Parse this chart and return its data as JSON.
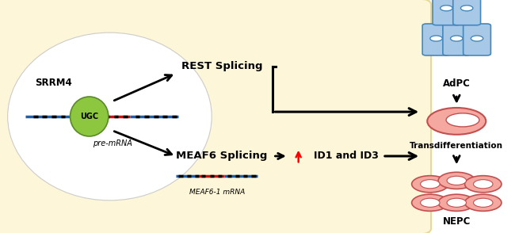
{
  "bg_color": "#fdf6d8",
  "bg_edge_color": "#e8d898",
  "srrm4_label": "SRRM4",
  "ugc_label": "UGC",
  "premrna_label": "pre-mRNA",
  "rest_label": "REST Splicing",
  "meaf6_label": "MEAF6 Splicing",
  "meaf6_mrna_label": "MEAF6-1 mRNA",
  "id_label": "ID1 and ID3",
  "adpc_label": "AdPC",
  "transdiff_label": "Transdifferentiation",
  "nepc_label": "NEPC",
  "line_blue": "#1e5fa8",
  "line_red": "#cc1111",
  "ugc_green": "#8dc63f",
  "ugc_green_edge": "#5a8a28",
  "arrow_color": "#111111",
  "cell_blue_fill": "#a8c8e8",
  "cell_blue_edge": "#4488bb",
  "cell_pink_fill": "#f5a8a0",
  "cell_pink_edge": "#c05050",
  "nucleus_ellipse": [
    0.215,
    0.5,
    0.38,
    0.62
  ]
}
